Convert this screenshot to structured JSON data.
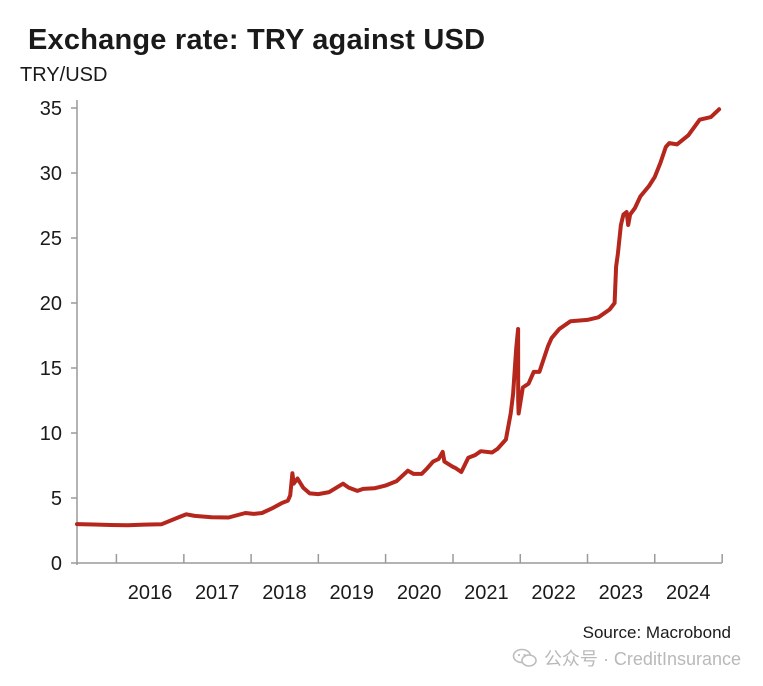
{
  "chart_data": {
    "type": "line",
    "title": "Exchange rate: TRY against USD",
    "ylabel": "TRY/USD",
    "xlabel": "",
    "ylim": [
      0,
      35
    ],
    "yticks": [
      "0",
      "5",
      "10",
      "15",
      "20",
      "25",
      "30",
      "35"
    ],
    "xticks": [
      "2016",
      "2017",
      "2018",
      "2019",
      "2020",
      "2021",
      "2022",
      "2023",
      "2024"
    ],
    "xlim": [
      "2015-06-01",
      "2024-12-31"
    ],
    "grid": false,
    "color": "#b5261c",
    "series": [
      {
        "x": [
          "2015-06-01",
          "2015-09-01",
          "2015-12-01",
          "2016-03-01",
          "2016-06-01",
          "2016-09-01",
          "2016-12-01",
          "2017-01-15",
          "2017-03-01",
          "2017-06-01",
          "2017-09-01",
          "2017-12-01",
          "2018-01-15",
          "2018-03-01",
          "2018-05-01",
          "2018-06-15",
          "2018-07-20",
          "2018-08-01",
          "2018-08-13",
          "2018-08-20",
          "2018-09-10",
          "2018-10-10",
          "2018-11-15",
          "2018-12-31",
          "2019-03-01",
          "2019-05-15",
          "2019-06-15",
          "2019-08-01",
          "2019-09-01",
          "2019-11-01",
          "2019-12-31",
          "2020-03-01",
          "2020-05-01",
          "2020-06-01",
          "2020-07-15",
          "2020-08-15",
          "2020-09-15",
          "2020-10-15",
          "2020-11-06",
          "2020-11-15",
          "2020-12-31",
          "2021-01-15",
          "2021-02-15",
          "2021-03-25",
          "2021-05-01",
          "2021-06-01",
          "2021-08-01",
          "2021-09-01",
          "2021-10-15",
          "2021-11-10",
          "2021-11-23",
          "2021-12-10",
          "2021-12-20",
          "2021-12-21",
          "2021-12-23",
          "2022-01-15",
          "2022-02-15",
          "2022-03-15",
          "2022-04-15",
          "2022-06-01",
          "2022-06-20",
          "2022-08-01",
          "2022-10-01",
          "2022-12-31",
          "2023-03-01",
          "2023-05-01",
          "2023-05-28",
          "2023-06-05",
          "2023-06-15",
          "2023-07-01",
          "2023-07-15",
          "2023-08-01",
          "2023-08-10",
          "2023-08-20",
          "2023-09-15",
          "2023-10-15",
          "2023-12-01",
          "2024-01-01",
          "2024-02-01",
          "2024-03-01",
          "2024-03-20",
          "2024-05-01",
          "2024-07-01",
          "2024-09-01",
          "2024-11-01",
          "2024-12-15"
        ],
        "y": [
          2.99,
          2.96,
          2.92,
          2.9,
          2.95,
          2.98,
          3.5,
          3.75,
          3.62,
          3.52,
          3.5,
          3.85,
          3.78,
          3.85,
          4.25,
          4.6,
          4.8,
          5.2,
          6.9,
          6.1,
          6.5,
          5.8,
          5.35,
          5.3,
          5.45,
          6.1,
          5.8,
          5.55,
          5.7,
          5.75,
          5.95,
          6.3,
          7.1,
          6.85,
          6.85,
          7.3,
          7.8,
          8.0,
          8.55,
          7.8,
          7.4,
          7.3,
          7.0,
          8.1,
          8.3,
          8.6,
          8.5,
          8.8,
          9.5,
          11.5,
          13.0,
          16.5,
          18.0,
          12.5,
          11.5,
          13.5,
          13.8,
          14.7,
          14.7,
          16.7,
          17.3,
          18.0,
          18.6,
          18.7,
          18.9,
          19.5,
          20.0,
          22.8,
          23.8,
          26.0,
          26.8,
          27.0,
          26.0,
          26.8,
          27.3,
          28.2,
          29.0,
          29.7,
          30.8,
          32.0,
          32.3,
          32.2,
          32.9,
          34.1,
          34.3,
          34.9
        ]
      }
    ]
  },
  "source_text": "Source: Macrobond",
  "watermark_text": "公众号 · CreditInsurance"
}
